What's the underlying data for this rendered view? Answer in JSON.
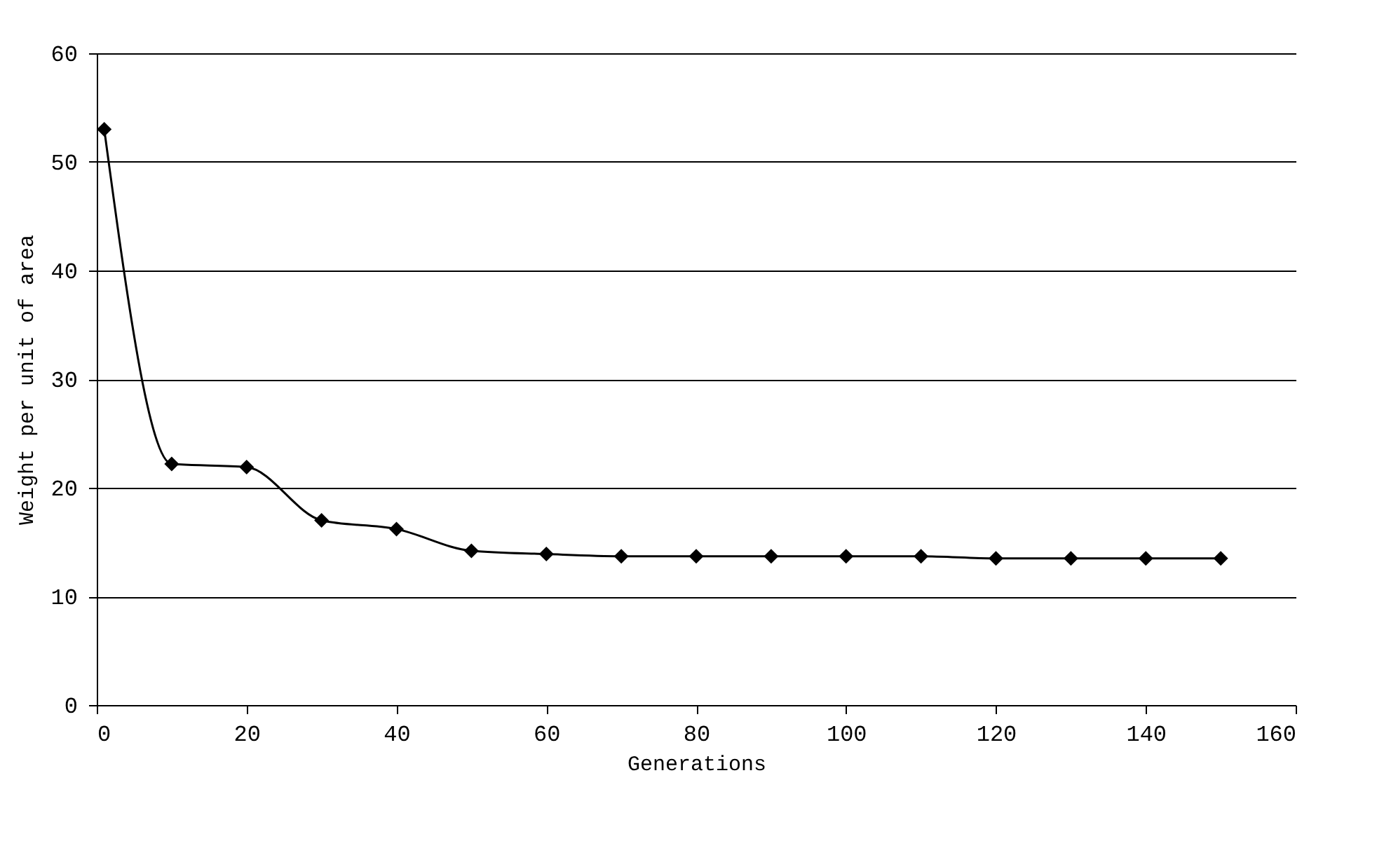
{
  "chart_data": {
    "type": "line",
    "xlabel": "Generations",
    "ylabel": "Weight per unit of area",
    "x": [
      1,
      10,
      20,
      30,
      40,
      50,
      60,
      70,
      80,
      90,
      100,
      110,
      120,
      130,
      140,
      150
    ],
    "series": [
      {
        "color": "#000000",
        "values": [
          53,
          22.2,
          21.9,
          17,
          16.2,
          14.2,
          13.9,
          13.7,
          13.7,
          13.7,
          13.7,
          13.7,
          13.5,
          13.5,
          13.5,
          13.5
        ]
      }
    ],
    "xlim": [
      0,
      160
    ],
    "xticks": [
      0,
      20,
      40,
      60,
      80,
      100,
      120,
      140,
      160
    ],
    "ylim": [
      0,
      60
    ],
    "yticks": [
      0,
      10,
      20,
      30,
      40,
      50,
      60
    ],
    "grid": "y",
    "marker": "diamond",
    "line_style": "solid"
  }
}
